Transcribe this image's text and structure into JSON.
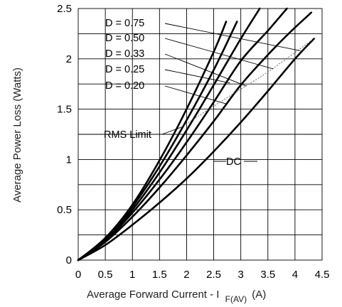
{
  "chart_data": {
    "type": "line",
    "xlabel_main": "Average Forward Current - I",
    "xlabel_sub": "F(AV)",
    "xlabel_unit": "(A)",
    "ylabel": "Average Power Loss (Watts)",
    "xlim": [
      0,
      4.5
    ],
    "ylim": [
      0,
      2.5
    ],
    "xticks": [
      "0",
      "0.5",
      "1",
      "1.5",
      "2",
      "2.5",
      "3",
      "3.5",
      "4",
      "4.5"
    ],
    "yticks": [
      "0",
      "0.5",
      "1",
      "1.5",
      "2",
      "2.5"
    ],
    "grid": true,
    "series": [
      {
        "name": "D = 0.75",
        "x": [
          0,
          0.5,
          1,
          1.5,
          2,
          2.5,
          3,
          3.5,
          3.9,
          4.3
        ],
        "y": [
          0,
          0.18,
          0.43,
          0.72,
          1.04,
          1.38,
          1.74,
          2.04,
          2.26,
          2.46
        ]
      },
      {
        "name": "D = 0.50",
        "x": [
          0,
          0.5,
          1,
          1.5,
          2,
          2.5,
          3,
          3.5,
          3.85
        ],
        "y": [
          0,
          0.19,
          0.47,
          0.8,
          1.17,
          1.57,
          1.98,
          2.28,
          2.5
        ]
      },
      {
        "name": "D = 0.33",
        "x": [
          0,
          0.5,
          1,
          1.5,
          2,
          2.5,
          3,
          3.35
        ],
        "y": [
          0,
          0.2,
          0.5,
          0.87,
          1.29,
          1.74,
          2.2,
          2.5
        ]
      },
      {
        "name": "D = 0.25",
        "x": [
          0,
          0.5,
          1,
          1.5,
          2,
          2.5,
          2.93
        ],
        "y": [
          0,
          0.21,
          0.53,
          0.93,
          1.39,
          1.89,
          2.37
        ]
      },
      {
        "name": "D = 0.20",
        "x": [
          0,
          0.5,
          1,
          1.5,
          2,
          2.5,
          2.73
        ],
        "y": [
          0,
          0.22,
          0.55,
          0.99,
          1.5,
          2.07,
          2.37
        ]
      },
      {
        "name": "DC",
        "x": [
          0,
          0.5,
          1,
          1.5,
          2,
          2.5,
          3,
          3.5,
          4,
          4.35
        ],
        "y": [
          0,
          0.15,
          0.35,
          0.57,
          0.81,
          1.08,
          1.37,
          1.68,
          2.0,
          2.2
        ]
      }
    ],
    "rms_limit": {
      "label": "RMS Limit",
      "x": [
        1.9,
        2.5,
        3.0,
        3.5,
        4.35
      ],
      "y": [
        1.32,
        1.53,
        1.7,
        1.87,
        2.2
      ]
    },
    "annotations": {
      "labels": [
        "D = 0.75",
        "D = 0.50",
        "D = 0.33",
        "D = 0.25",
        "D = 0.20"
      ],
      "dc_label": "DC"
    }
  }
}
